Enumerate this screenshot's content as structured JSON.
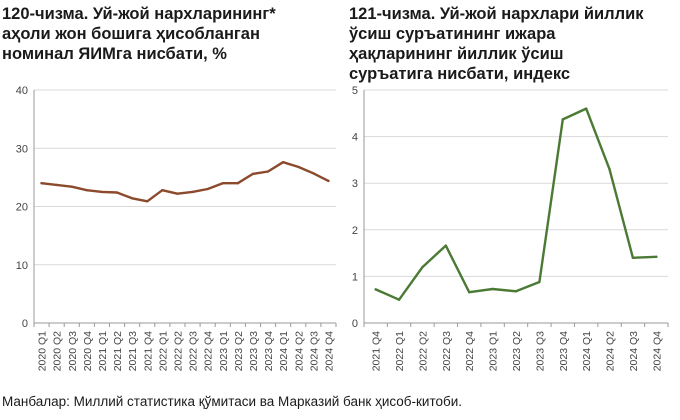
{
  "charts_title": null,
  "chart_data": [
    {
      "type": "line",
      "title_lines": [
        "120-чизма. Уй-жой нархларининг*",
        "аҳоли жон бошига ҳисобланган",
        "номинал ЯИМга нисбати, %"
      ],
      "x": [
        "2020 Q1",
        "2020 Q2",
        "2020 Q3",
        "2020 Q4",
        "2021 Q1",
        "2021 Q2",
        "2021 Q3",
        "2021 Q4",
        "2022 Q1",
        "2022 Q2",
        "2022 Q3",
        "2022 Q4",
        "2023 Q1",
        "2023 Q2",
        "2023 Q3",
        "2023 Q4",
        "2024 Q1",
        "2024 Q2",
        "2024 Q3",
        "2024 Q4"
      ],
      "series": [
        {
          "values": [
            24.0,
            23.7,
            23.4,
            22.8,
            22.5,
            22.4,
            21.4,
            20.9,
            22.8,
            22.2,
            22.5,
            23.0,
            24.0,
            24.0,
            25.6,
            26.0,
            27.6,
            26.8,
            25.7,
            24.4
          ],
          "color": "#8B4A2B"
        }
      ],
      "ylim": [
        0,
        40
      ],
      "yticks": [
        0,
        10,
        20,
        30,
        40
      ],
      "grid": "horizontal",
      "xlabel": "",
      "ylabel": ""
    },
    {
      "type": "line",
      "title_lines": [
        "121-чизма. Уй-жой нархлари йиллик",
        "ўсиш суръатининг ижара",
        "ҳақларининг йиллик ўсиш",
        "суръатига нисбати, индекс"
      ],
      "x": [
        "2021 Q4",
        "2022 Q1",
        "2022 Q2",
        "2022 Q3",
        "2022 Q4",
        "2023 Q1",
        "2023 Q2",
        "2023 Q3",
        "2023 Q4",
        "2024 Q1",
        "2024 Q2",
        "2024 Q3",
        "2024 Q4"
      ],
      "series": [
        {
          "values": [
            0.72,
            0.5,
            1.2,
            1.66,
            0.66,
            0.73,
            0.68,
            0.88,
            4.37,
            4.6,
            3.3,
            1.4,
            1.42
          ],
          "color": "#4A7A34"
        }
      ],
      "ylim": [
        0,
        5
      ],
      "yticks": [
        0,
        1,
        2,
        3,
        4,
        5
      ],
      "grid": "horizontal",
      "xlabel": "",
      "ylabel": ""
    }
  ],
  "source": "Манбалар: Миллий статистика қўмитаси ва Марказий банк ҳисоб-китоби."
}
